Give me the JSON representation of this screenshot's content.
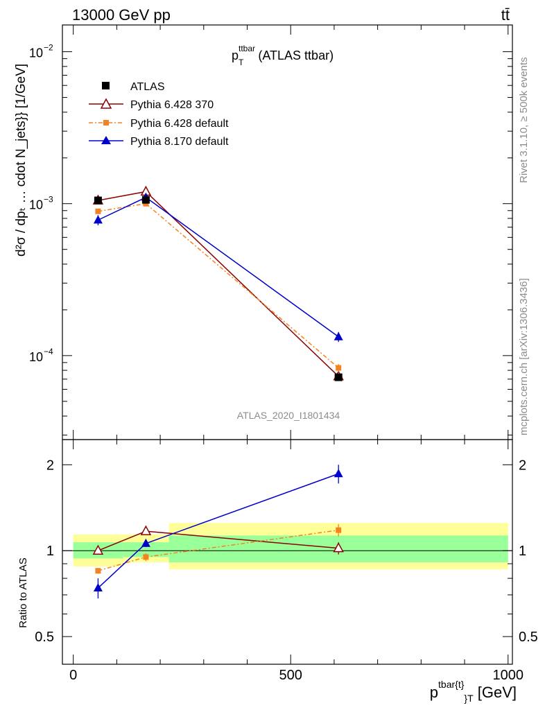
{
  "header": {
    "left": "13000 GeV pp",
    "right": "tt̄"
  },
  "top_title": {
    "main": "p",
    "sup": "ttbar",
    "sub": "T",
    "suffix": " (ATLAS ttbar)"
  },
  "watermark": "ATLAS_2020_I1801434",
  "side_labels": {
    "rivet": "Rivet 3.1.10, ≥ 500k events",
    "mcplots": "mcplots.cern.ch [arXiv:1306.3436]"
  },
  "axes": {
    "top_ylabel": "d²σ / dpₜ … cdot N_jets}} [1/GeV]",
    "bottom_ylabel": "Ratio to ATLAS",
    "xlabel_main": "p",
    "xlabel_sup": "tbar{t}",
    "xlabel_sub": "}",
    "xlabel_sub2": "T",
    "xlabel_unit": " [GeV]"
  },
  "legend": [
    {
      "label": "ATLAS",
      "color": "#000000",
      "marker": "square"
    },
    {
      "label": "Pythia 6.428 370",
      "color": "#8b0000",
      "marker": "open-triangle"
    },
    {
      "label": "Pythia 6.428 default",
      "color": "#f58220",
      "marker": "square-dashdot"
    },
    {
      "label": "Pythia 8.170 default",
      "color": "#0000cc",
      "marker": "triangle"
    }
  ],
  "chart_data": [
    {
      "type": "line",
      "title": "",
      "yscale": "log",
      "ylim": [
        2.8e-05,
        0.015
      ],
      "xlim": [
        -25,
        1010
      ],
      "x_ticks": [
        0,
        500,
        1000
      ],
      "y_ticks": [
        {
          "v": 0.01,
          "label": "10",
          "exp": "-2"
        },
        {
          "v": 0.001,
          "label": "10",
          "exp": "-3"
        },
        {
          "v": 0.0001,
          "label": "10",
          "exp": "-4"
        }
      ],
      "x": [
        57,
        167,
        610
      ],
      "series": [
        {
          "name": "ATLAS",
          "color": "#000000",
          "values": [
            0.00105,
            0.00106,
            7.2e-05
          ],
          "err": [
            4e-05,
            4e-05,
            3e-06
          ]
        },
        {
          "name": "Pythia 6.428 370",
          "color": "#8b0000",
          "values": [
            0.00105,
            0.0012,
            7.3e-05
          ],
          "err": [
            3e-05,
            3e-05,
            4e-06
          ]
        },
        {
          "name": "Pythia 6.428 default",
          "color": "#f58220",
          "values": [
            0.00089,
            0.001,
            8.3e-05
          ],
          "err": [
            3e-05,
            3e-05,
            5e-06
          ]
        },
        {
          "name": "Pythia 8.170 default",
          "color": "#0000cc",
          "values": [
            0.00078,
            0.0011,
            0.000133
          ],
          "err": [
            6e-05,
            4e-05,
            1e-05
          ]
        }
      ]
    },
    {
      "type": "line",
      "yscale": "log",
      "ylim": [
        0.4,
        2.45
      ],
      "xlim": [
        -25,
        1010
      ],
      "x_ticks": [
        0,
        500,
        1000
      ],
      "y_ticks": [
        0.5,
        1,
        2
      ],
      "bands": [
        {
          "x0": 0,
          "x1": 115,
          "yellow": [
            0.88,
            1.14
          ],
          "green": [
            0.94,
            1.07
          ]
        },
        {
          "x0": 115,
          "x1": 220,
          "yellow": [
            0.91,
            1.14
          ],
          "green": [
            0.95,
            1.07
          ]
        },
        {
          "x0": 220,
          "x1": 1000,
          "yellow": [
            0.86,
            1.25
          ],
          "green": [
            0.91,
            1.13
          ]
        }
      ],
      "x": [
        57,
        167,
        610
      ],
      "series": [
        {
          "name": "Pythia 6.428 370",
          "color": "#8b0000",
          "values": [
            1.0,
            1.17,
            1.02
          ],
          "err": [
            0.02,
            0.03,
            0.05
          ]
        },
        {
          "name": "Pythia 6.428 default",
          "color": "#f58220",
          "values": [
            0.85,
            0.95,
            1.18
          ],
          "err": [
            0.02,
            0.03,
            0.06
          ]
        },
        {
          "name": "Pythia 8.170 default",
          "color": "#0000cc",
          "values": [
            0.74,
            1.06,
            1.86
          ],
          "err": [
            0.06,
            0.03,
            0.14
          ]
        }
      ]
    }
  ]
}
